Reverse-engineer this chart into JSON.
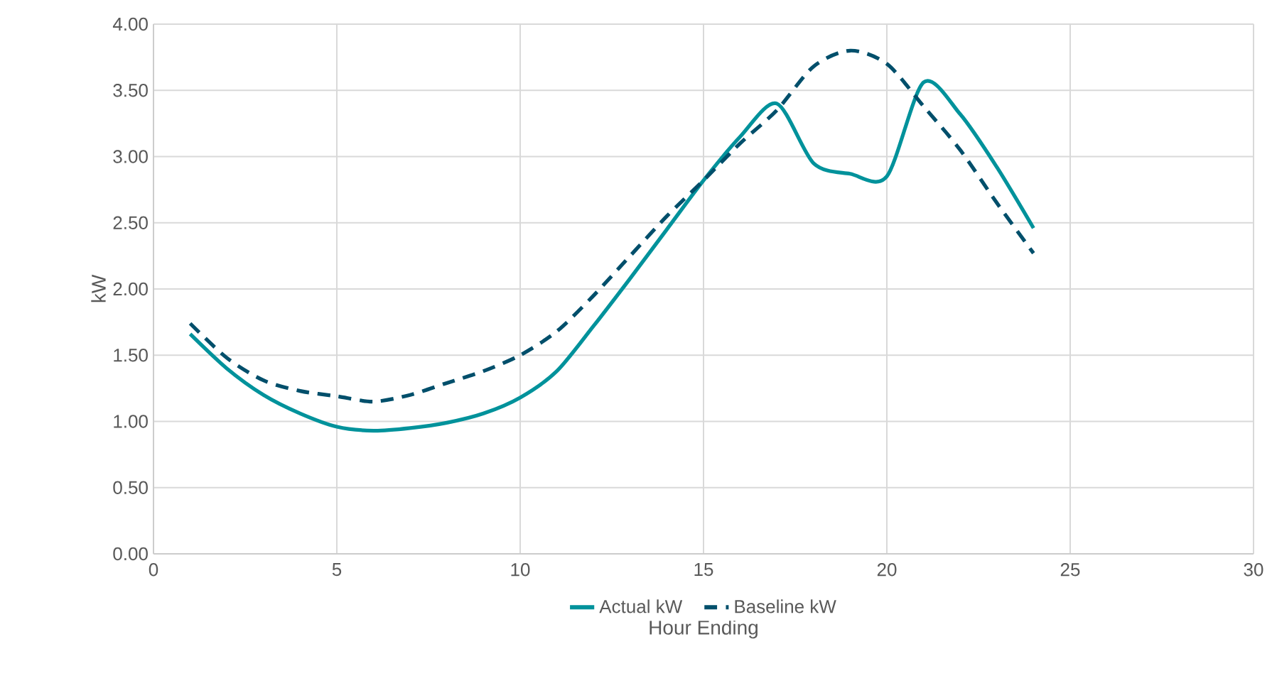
{
  "chart_data": {
    "type": "line",
    "xlabel": "Hour Ending",
    "ylabel": "kW",
    "x": [
      1,
      2,
      3,
      4,
      5,
      6,
      7,
      8,
      9,
      10,
      11,
      12,
      13,
      14,
      15,
      16,
      17,
      18,
      19,
      20,
      21,
      22,
      23,
      24
    ],
    "series": [
      {
        "name": "Actual kW",
        "color": "#00929b",
        "line_style": "solid",
        "values": [
          1.66,
          1.4,
          1.2,
          1.06,
          0.96,
          0.93,
          0.95,
          0.99,
          1.06,
          1.18,
          1.38,
          1.72,
          2.08,
          2.45,
          2.82,
          3.15,
          3.4,
          2.95,
          2.87,
          2.85,
          3.56,
          3.32,
          2.92,
          2.46
        ]
      },
      {
        "name": "Baseline kW",
        "color": "#004f6b",
        "line_style": "dashed",
        "values": [
          1.74,
          1.48,
          1.31,
          1.23,
          1.19,
          1.15,
          1.2,
          1.29,
          1.38,
          1.5,
          1.68,
          1.95,
          2.25,
          2.55,
          2.82,
          3.1,
          3.35,
          3.68,
          3.8,
          3.7,
          3.38,
          3.05,
          2.65,
          2.27
        ]
      }
    ],
    "xlim": [
      0,
      30
    ],
    "xticks": [
      0,
      5,
      10,
      15,
      20,
      25,
      30
    ],
    "ylim": [
      0,
      4
    ],
    "yticks": [
      {
        "value": 0,
        "label": "0.00"
      },
      {
        "value": 0.5,
        "label": "0.50"
      },
      {
        "value": 1,
        "label": "1.00"
      },
      {
        "value": 1.5,
        "label": "1.50"
      },
      {
        "value": 2,
        "label": "2.00"
      },
      {
        "value": 2.5,
        "label": "2.50"
      },
      {
        "value": 3,
        "label": "3.00"
      },
      {
        "value": 3.5,
        "label": "3.50"
      },
      {
        "value": 4,
        "label": "4.00"
      }
    ],
    "grid": true,
    "legend": "bottom",
    "marker": "none"
  }
}
